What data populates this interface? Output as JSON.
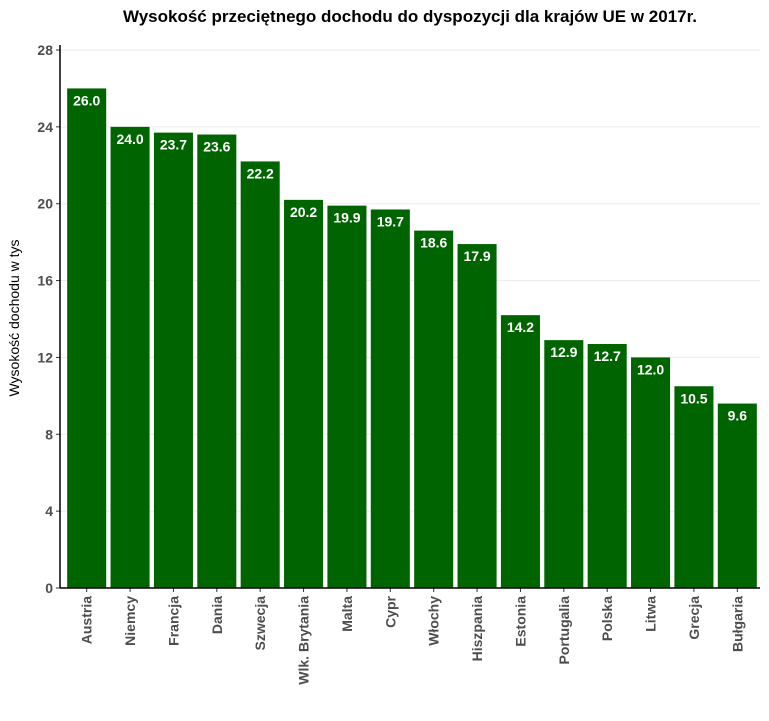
{
  "chart_data": {
    "type": "bar",
    "title": "Wysokość przeciętnego dochodu do dyspozycji dla krajów UE w 2017r.",
    "xlabel": "",
    "ylabel": "Wysokość dochodu w tys",
    "categories": [
      "Austria",
      "Niemcy",
      "Francja",
      "Dania",
      "Szwecja",
      "Wlk. Brytania",
      "Malta",
      "Cypr",
      "Włochy",
      "Hiszpania",
      "Estonia",
      "Portugalia",
      "Polska",
      "Litwa",
      "Grecja",
      "Bułgaria"
    ],
    "values": [
      26.0,
      24.0,
      23.7,
      23.6,
      22.2,
      20.2,
      19.9,
      19.7,
      18.6,
      17.9,
      14.2,
      12.9,
      12.7,
      12.0,
      10.5,
      9.6
    ],
    "data_labels": [
      "26.0",
      "24.0",
      "23.7",
      "23.6",
      "22.2",
      "20.2",
      "19.9",
      "19.7",
      "18.6",
      "17.9",
      "14.2",
      "12.9",
      "12.7",
      "12.0",
      "10.5",
      "9.6"
    ],
    "ylim": [
      0,
      28
    ],
    "yticks": [
      0,
      4,
      8,
      12,
      16,
      20,
      24,
      28
    ],
    "ytick_labels": [
      "0",
      "4",
      "8",
      "12",
      "16",
      "20",
      "24",
      "28"
    ],
    "grid": true,
    "legend": "none",
    "bar_color": "#006400"
  }
}
